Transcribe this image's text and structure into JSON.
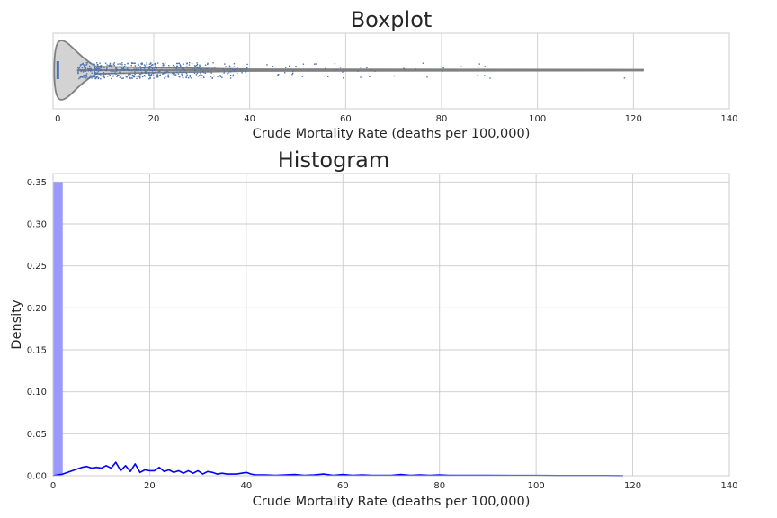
{
  "colors": {
    "grid": "#cccccc",
    "text": "#262626",
    "strip_point": "#4c72b0",
    "violin_fill": "#d3d3d3",
    "violin_edge": "#808080",
    "hist_bar": "#9999ff",
    "kde_line": "#0000ff"
  },
  "chart_data": [
    {
      "type": "boxplot",
      "title": "Boxplot",
      "xlabel": "Crude Mortality Rate (deaths per 100,000)",
      "xlim": [
        -1,
        140
      ],
      "xticks": [
        0,
        20,
        40,
        60,
        80,
        100,
        120,
        140
      ],
      "grid": true,
      "layers": [
        "violin",
        "strip"
      ],
      "summary": {
        "min": 0,
        "q1": 0,
        "median": 0,
        "q3": 0,
        "whisker_high": 0,
        "max": 122
      },
      "strip": {
        "bands": [
          {
            "range": [
              4,
              10
            ],
            "count": 150
          },
          {
            "range": [
              10,
              20
            ],
            "count": 190
          },
          {
            "range": [
              20,
              30
            ],
            "count": 130
          },
          {
            "range": [
              30,
              40
            ],
            "count": 60
          },
          {
            "range": [
              40,
              60
            ],
            "count": 25
          },
          {
            "range": [
              60,
              90
            ],
            "count": 14
          }
        ],
        "outliers": [
          63,
          66,
          70,
          72,
          76,
          80,
          84,
          90,
          118
        ]
      }
    },
    {
      "type": "histogram",
      "title": "Histogram",
      "xlabel": "Crude Mortality Rate (deaths per 100,000)",
      "ylabel": "Density",
      "xlim": [
        0,
        140
      ],
      "ylim": [
        0,
        0.36
      ],
      "xticks": [
        0,
        20,
        40,
        60,
        80,
        100,
        120,
        140
      ],
      "yticks": [
        0,
        0.05,
        0.1,
        0.15,
        0.2,
        0.25,
        0.3,
        0.35
      ],
      "ytick_labels": [
        "0.00",
        "0.05",
        "0.10",
        "0.15",
        "0.20",
        "0.25",
        "0.30",
        "0.35"
      ],
      "grid": true,
      "bars": [
        {
          "x0": 0,
          "x1": 2,
          "density": 0.35
        }
      ],
      "kde": {
        "x": [
          0,
          1,
          2,
          3,
          4,
          5,
          6,
          7,
          8,
          9,
          10,
          11,
          12,
          13,
          14,
          15,
          16,
          17,
          18,
          19,
          20,
          21,
          22,
          23,
          24,
          25,
          26,
          27,
          28,
          29,
          30,
          31,
          32,
          33,
          34,
          35,
          36,
          37,
          38,
          39,
          40,
          41,
          42,
          44,
          46,
          48,
          50,
          52,
          54,
          56,
          58,
          60,
          62,
          64,
          66,
          68,
          70,
          72,
          74,
          76,
          78,
          80,
          82,
          84,
          86,
          88,
          90,
          95,
          100,
          105,
          110,
          114,
          118
        ],
        "y": [
          0,
          0.001,
          0.002,
          0.004,
          0.006,
          0.008,
          0.01,
          0.011,
          0.009,
          0.01,
          0.009,
          0.012,
          0.009,
          0.016,
          0.006,
          0.012,
          0.005,
          0.014,
          0.004,
          0.007,
          0.006,
          0.006,
          0.01,
          0.005,
          0.007,
          0.004,
          0.006,
          0.003,
          0.006,
          0.003,
          0.006,
          0.002,
          0.005,
          0.004,
          0.002,
          0.003,
          0.002,
          0.002,
          0.002,
          0.003,
          0.004,
          0.002,
          0.001,
          0.001,
          0.0005,
          0.001,
          0.0015,
          0.0005,
          0.001,
          0.002,
          0.0005,
          0.0015,
          0.0005,
          0.001,
          0.0005,
          0.0005,
          0.0005,
          0.0015,
          0.0005,
          0.001,
          0.0005,
          0.001,
          0.0005,
          0.0005,
          0.0005,
          0.0005,
          0.0005,
          0.0003,
          0.0003,
          0.0002,
          0.0002,
          0.0002,
          0.0001
        ]
      }
    }
  ]
}
